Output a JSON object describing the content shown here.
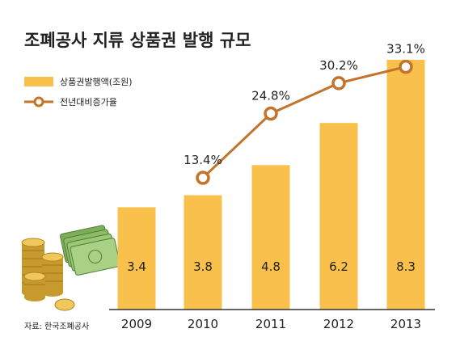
{
  "chart_data": {
    "type": "bar",
    "title": "조폐공사 지류 상품권 발행 규모",
    "categories": [
      "2009",
      "2010",
      "2011",
      "2012",
      "2013"
    ],
    "series": [
      {
        "name": "상품권발행액(조원)",
        "type": "bar",
        "values": [
          3.4,
          3.8,
          4.8,
          6.2,
          8.3
        ],
        "color": "#F9C04C"
      },
      {
        "name": "전년대비증가율",
        "type": "line",
        "values": [
          null,
          13.4,
          24.8,
          30.2,
          33.1
        ],
        "labels": [
          "",
          "13.4%",
          "24.8%",
          "30.2%",
          "33.1%"
        ],
        "color": "#C4732B"
      }
    ],
    "legend_position": "top-left",
    "grid": false,
    "source": "자료: 한국조폐공사",
    "colors": {
      "bar": "#F9C04C",
      "line": "#C4732B",
      "axis": "#333333",
      "text": "#222222"
    }
  },
  "decoration": {
    "icon": "coins-and-banknotes-icon"
  }
}
